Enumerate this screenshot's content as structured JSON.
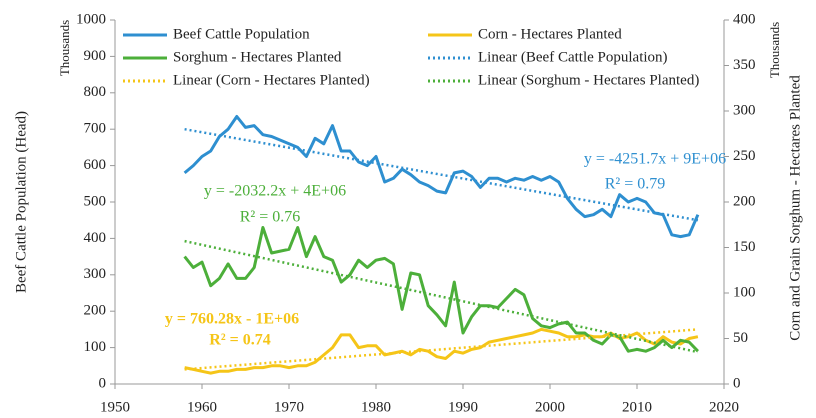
{
  "chart_data": {
    "type": "line",
    "y_label": "Beef Cattle Population (Head)",
    "y_unit": "Thousands",
    "y2_label": "Corn and Grain Sorghum - Hectares Planted",
    "y2_unit": "Thousands",
    "xlim": [
      1950,
      2020
    ],
    "xticks": [
      1950,
      1960,
      1970,
      1980,
      1990,
      2000,
      2010,
      2020
    ],
    "ylim": [
      0,
      1000
    ],
    "yticks": [
      0,
      100,
      200,
      300,
      400,
      500,
      600,
      700,
      800,
      900,
      1000
    ],
    "y2lim": [
      0,
      400
    ],
    "y2ticks": [
      0,
      50,
      100,
      150,
      200,
      250,
      300,
      350,
      400
    ],
    "grid": false,
    "x": [
      1958,
      1959,
      1960,
      1961,
      1962,
      1963,
      1964,
      1965,
      1966,
      1967,
      1968,
      1969,
      1970,
      1971,
      1972,
      1973,
      1974,
      1975,
      1976,
      1977,
      1978,
      1979,
      1980,
      1981,
      1982,
      1983,
      1984,
      1985,
      1986,
      1987,
      1988,
      1989,
      1990,
      1991,
      1992,
      1993,
      1994,
      1995,
      1996,
      1997,
      1998,
      1999,
      2000,
      2001,
      2002,
      2003,
      2004,
      2005,
      2006,
      2007,
      2008,
      2009,
      2010,
      2011,
      2012,
      2013,
      2014,
      2015,
      2016,
      2017
    ],
    "series": [
      {
        "name": "Beef Cattle Population",
        "color": "#2e8fd0",
        "style": "solid",
        "axis": "y",
        "values": [
          580,
          600,
          625,
          640,
          680,
          700,
          735,
          705,
          710,
          685,
          680,
          670,
          660,
          650,
          625,
          675,
          660,
          710,
          640,
          640,
          610,
          600,
          625,
          555,
          565,
          590,
          575,
          555,
          545,
          530,
          525,
          580,
          585,
          570,
          540,
          565,
          565,
          555,
          565,
          560,
          570,
          560,
          570,
          555,
          510,
          480,
          460,
          465,
          480,
          460,
          520,
          500,
          510,
          500,
          470,
          465,
          410,
          405,
          410,
          465
        ]
      },
      {
        "name": "Corn - Hectares Planted",
        "color": "#f5c518",
        "style": "solid",
        "axis": "y2",
        "values": [
          18,
          16,
          14,
          12,
          14,
          14,
          16,
          16,
          18,
          18,
          20,
          20,
          18,
          20,
          20,
          24,
          32,
          40,
          54,
          54,
          40,
          42,
          42,
          32,
          34,
          36,
          32,
          38,
          36,
          30,
          28,
          36,
          34,
          38,
          40,
          46,
          48,
          50,
          52,
          54,
          56,
          60,
          58,
          56,
          52,
          52,
          54,
          52,
          52,
          56,
          50,
          52,
          56,
          48,
          44,
          52,
          46,
          44,
          50,
          52
        ]
      },
      {
        "name": "Sorghum - Hectares  Planted",
        "color": "#4caf3a",
        "style": "solid",
        "axis": "y2",
        "values": [
          140,
          128,
          134,
          108,
          116,
          132,
          116,
          116,
          128,
          172,
          144,
          146,
          148,
          172,
          140,
          162,
          140,
          136,
          112,
          120,
          136,
          128,
          136,
          138,
          132,
          82,
          122,
          120,
          86,
          76,
          64,
          112,
          56,
          74,
          86,
          86,
          84,
          94,
          104,
          98,
          72,
          64,
          62,
          66,
          68,
          56,
          56,
          48,
          44,
          54,
          52,
          36,
          38,
          36,
          40,
          48,
          40,
          48,
          46,
          36
        ]
      },
      {
        "name": "Linear (Beef Cattle Population)",
        "color": "#2e8fd0",
        "style": "dotted",
        "axis": "y",
        "x": [
          1958,
          2017
        ],
        "values": [
          700,
          450
        ]
      },
      {
        "name": "Linear (Corn - Hectares Planted)",
        "color": "#f5c518",
        "style": "dotted",
        "axis": "y2",
        "x": [
          1958,
          2017
        ],
        "values": [
          16,
          60
        ]
      },
      {
        "name": "Linear (Sorghum - Hectares  Planted)",
        "color": "#4caf3a",
        "style": "dotted",
        "axis": "y2",
        "x": [
          1958,
          2017
        ],
        "values": [
          157,
          35
        ]
      }
    ],
    "annotations": [
      {
        "text": "y = -4251.7x + 9E+06",
        "color": "#2e8fd0"
      },
      {
        "text": "R² = 0.79",
        "color": "#2e8fd0"
      },
      {
        "text": "y = -2032.2x + 4E+06",
        "color": "#4caf3a"
      },
      {
        "text": "R² = 0.76",
        "color": "#4caf3a"
      },
      {
        "text": "y = 760.28x - 1E+06",
        "color": "#f5c518"
      },
      {
        "text": "R² = 0.74",
        "color": "#f5c518"
      }
    ]
  }
}
